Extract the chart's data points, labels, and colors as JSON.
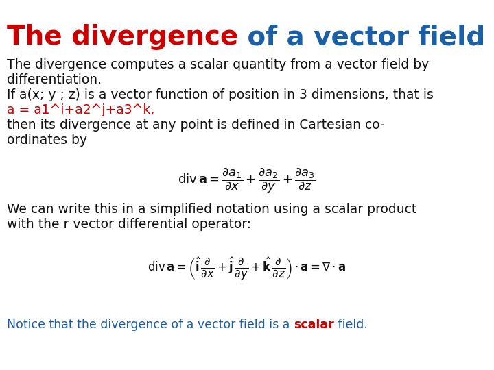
{
  "bg_color": "#ffffff",
  "title_part1": "The divergence",
  "title_part2": " of a vector field",
  "title_color1": "#cc0000",
  "title_color2": "#1a5fa8",
  "title_fontsize": 28,
  "body_fontsize": 13.5,
  "body_color": "#111111",
  "red_color": "#cc0000",
  "blue_color": "#1a5fa8",
  "eq1": "$\\mathrm{div}\\,\\mathbf{a} = \\dfrac{\\partial a_1}{\\partial x} + \\dfrac{\\partial a_2}{\\partial y} + \\dfrac{\\partial a_3}{\\partial z}$",
  "eq2": "$\\mathrm{div}\\,\\mathbf{a} = \\left(\\hat{\\mathbf{i}}\\,\\dfrac{\\partial}{\\partial x} + \\hat{\\mathbf{j}}\\,\\dfrac{\\partial}{\\partial y} + \\hat{\\mathbf{k}}\\,\\dfrac{\\partial}{\\partial z}\\right) \\cdot \\mathbf{a} = \\nabla \\cdot \\mathbf{a}$",
  "notice_prefix": "Notice that the divergence of a vector field is a ",
  "notice_keyword": "scalar",
  "notice_suffix": " field.",
  "notice_color": "#1a5fa8",
  "notice_keyword_color": "#cc0000",
  "fig_width": 7.2,
  "fig_height": 5.4,
  "dpi": 100
}
